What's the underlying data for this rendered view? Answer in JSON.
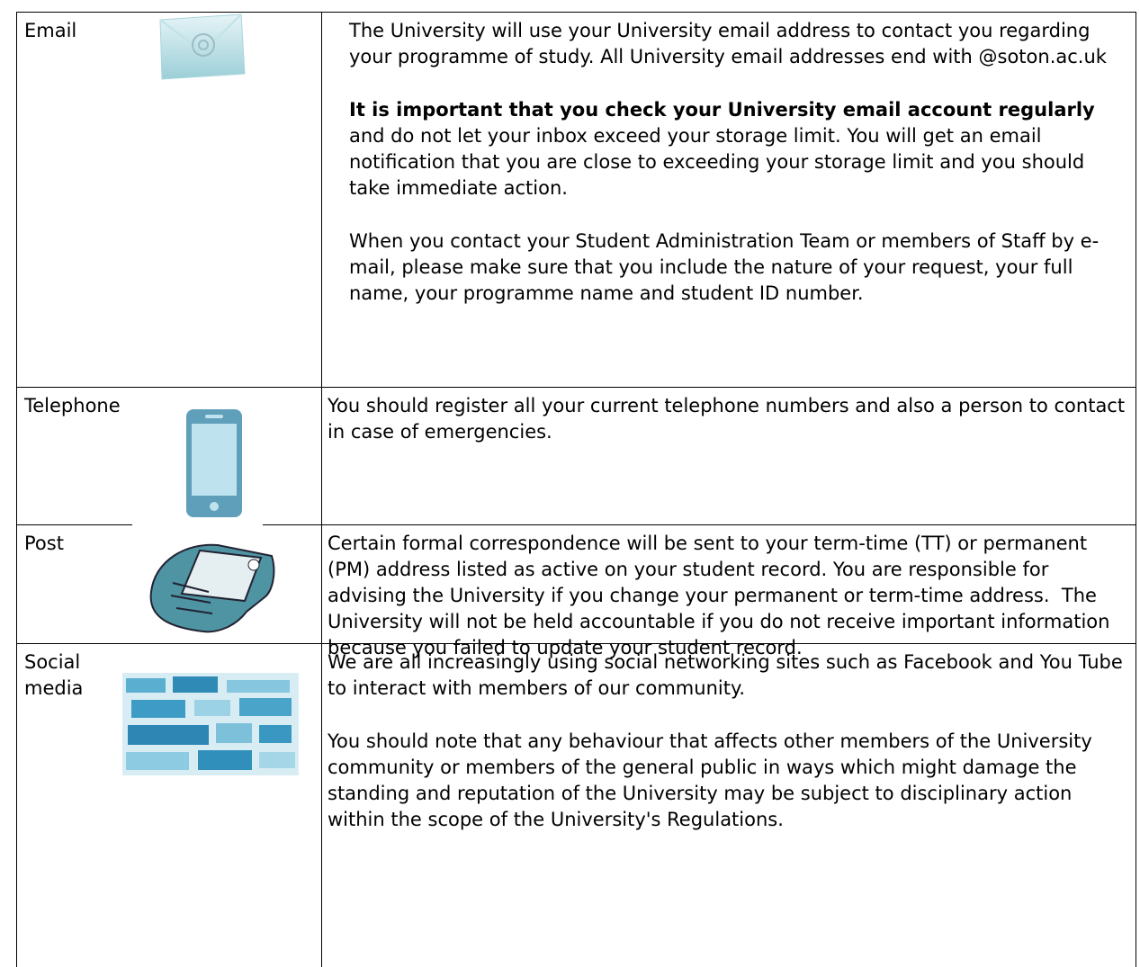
{
  "table": {
    "rows": [
      {
        "label": "Email",
        "paragraphs": [
          {
            "text": "The University will use your University email address to contact you regarding your programme of study. All University email addresses end with @soton.ac.uk"
          },
          {
            "bold": "It is important that you check your University email account regularly",
            "text": "and do not let your inbox exceed your storage limit. You will get an email notification that you are close to exceeding your storage limit and you should take immediate action."
          },
          {
            "text": "When you contact your Student Administration Team or members of Staff by e-mail, please make sure that you include the nature of your request, your full name, your programme name and student ID number."
          }
        ]
      },
      {
        "label": "Telephone",
        "paragraphs": [
          {
            "text": "You should register all your current telephone numbers and also a person to contact in case of emergencies."
          }
        ]
      },
      {
        "label": "Post",
        "paragraphs": [
          {
            "text": "Certain formal correspondence will be sent to your term-time (TT) or permanent (PM) address listed as active on your student record. You are responsible for advising the University if you change your permanent or term-time address.  The University will not be held accountable if you do not receive important information because you failed to update your student record."
          }
        ]
      },
      {
        "label": "Social media",
        "paragraphs": [
          {
            "text": "We are all increasingly using social networking sites such as Facebook and You Tube to interact with members of our community."
          },
          {
            "text": "You should note that any behaviour that affects other members of the University community or members of the general public in ways which might damage the standing and reputation of the University may be subject to disciplinary action within the scope of the University's Regulations."
          }
        ]
      }
    ]
  }
}
